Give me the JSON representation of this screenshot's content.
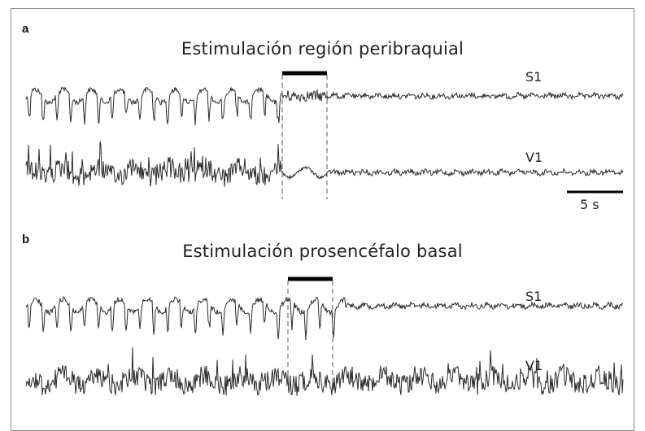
{
  "panels": [
    {
      "letter": "a",
      "title": "Estimulación región peribraquial",
      "traces": [
        {
          "label": "S1"
        },
        {
          "label": "V1"
        }
      ]
    },
    {
      "letter": "b",
      "title": "Estimulación prosencéfalo basal",
      "traces": [
        {
          "label": "S1"
        },
        {
          "label": "V1"
        }
      ]
    }
  ],
  "scale_bar": {
    "label": "5 s"
  },
  "colors": {
    "trace": "#2a2a2a",
    "bar": "#000000",
    "dashed": "#555555"
  }
}
